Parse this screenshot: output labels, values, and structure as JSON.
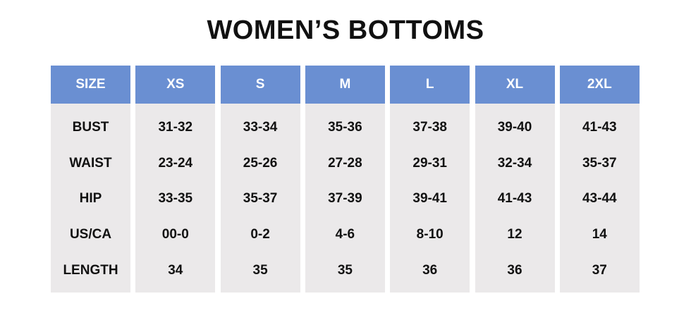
{
  "title": "WOMEN’S BOTTOMS",
  "table": {
    "header": [
      "SIZE",
      "XS",
      "S",
      "M",
      "L",
      "XL",
      "2XL"
    ],
    "rows": [
      [
        "BUST",
        "31-32",
        "33-34",
        "35-36",
        "37-38",
        "39-40",
        "41-43"
      ],
      [
        "WAIST",
        "23-24",
        "25-26",
        "27-28",
        "29-31",
        "32-34",
        "35-37"
      ],
      [
        "HIP",
        "33-35",
        "35-37",
        "37-39",
        "39-41",
        "41-43",
        "43-44"
      ],
      [
        "US/CA",
        "00-0",
        "0-2",
        "4-6",
        "8-10",
        "12",
        "14"
      ],
      [
        "LENGTH",
        "34",
        "35",
        "35",
        "36",
        "36",
        "37"
      ]
    ]
  }
}
